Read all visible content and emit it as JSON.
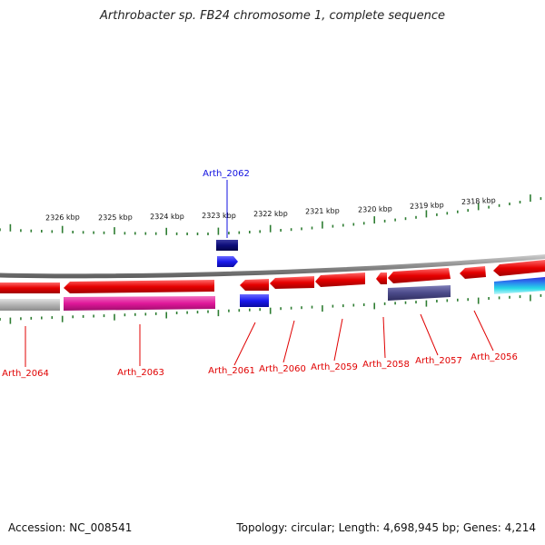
{
  "title": "Arthrobacter sp. FB24 chromosome 1, complete sequence",
  "footer": {
    "accession": "Accession: NC_008541",
    "topology": "Topology: circular; Length: 4,698,945 bp; Genes: 4,214"
  },
  "ruler": {
    "kbp_labels": [
      "2326 kbp",
      "2325 kbp",
      "2324 kbp",
      "2323 kbp",
      "2322 kbp",
      "2321 kbp",
      "2320 kbp",
      "2319 kbp",
      "2318 kbp"
    ],
    "tick_color": "#2e7d32"
  },
  "backbone_color": "#8a8a8a",
  "genes": [
    {
      "name": "Arth_2064",
      "color": "#dd0000",
      "strand": "forward-ring"
    },
    {
      "name": "Arth_2063",
      "color": "#dd0000",
      "strand": "forward-ring"
    },
    {
      "name": "Arth_2062",
      "color": "#1010e0",
      "strand": "outer"
    },
    {
      "name": "Arth_2061",
      "color": "#dd0000",
      "strand": "forward-ring"
    },
    {
      "name": "Arth_2060",
      "color": "#dd0000",
      "strand": "forward-ring"
    },
    {
      "name": "Arth_2059",
      "color": "#dd0000",
      "strand": "forward-ring"
    },
    {
      "name": "Arth_2058",
      "color": "#dd0000",
      "strand": "forward-ring"
    },
    {
      "name": "Arth_2057",
      "color": "#dd0000",
      "strand": "forward-ring"
    },
    {
      "name": "Arth_2056",
      "color": "#dd0000",
      "strand": "forward-ring"
    }
  ],
  "feature_colors": {
    "cds": "#e60000",
    "category_magenta": "#e0179a",
    "category_gray": "#b4b4b4",
    "category_blue": "#1a1aee",
    "category_navy": "#0d0d7a",
    "category_slate": "#4b4a8a",
    "category_cyan": "#27d8e6"
  }
}
